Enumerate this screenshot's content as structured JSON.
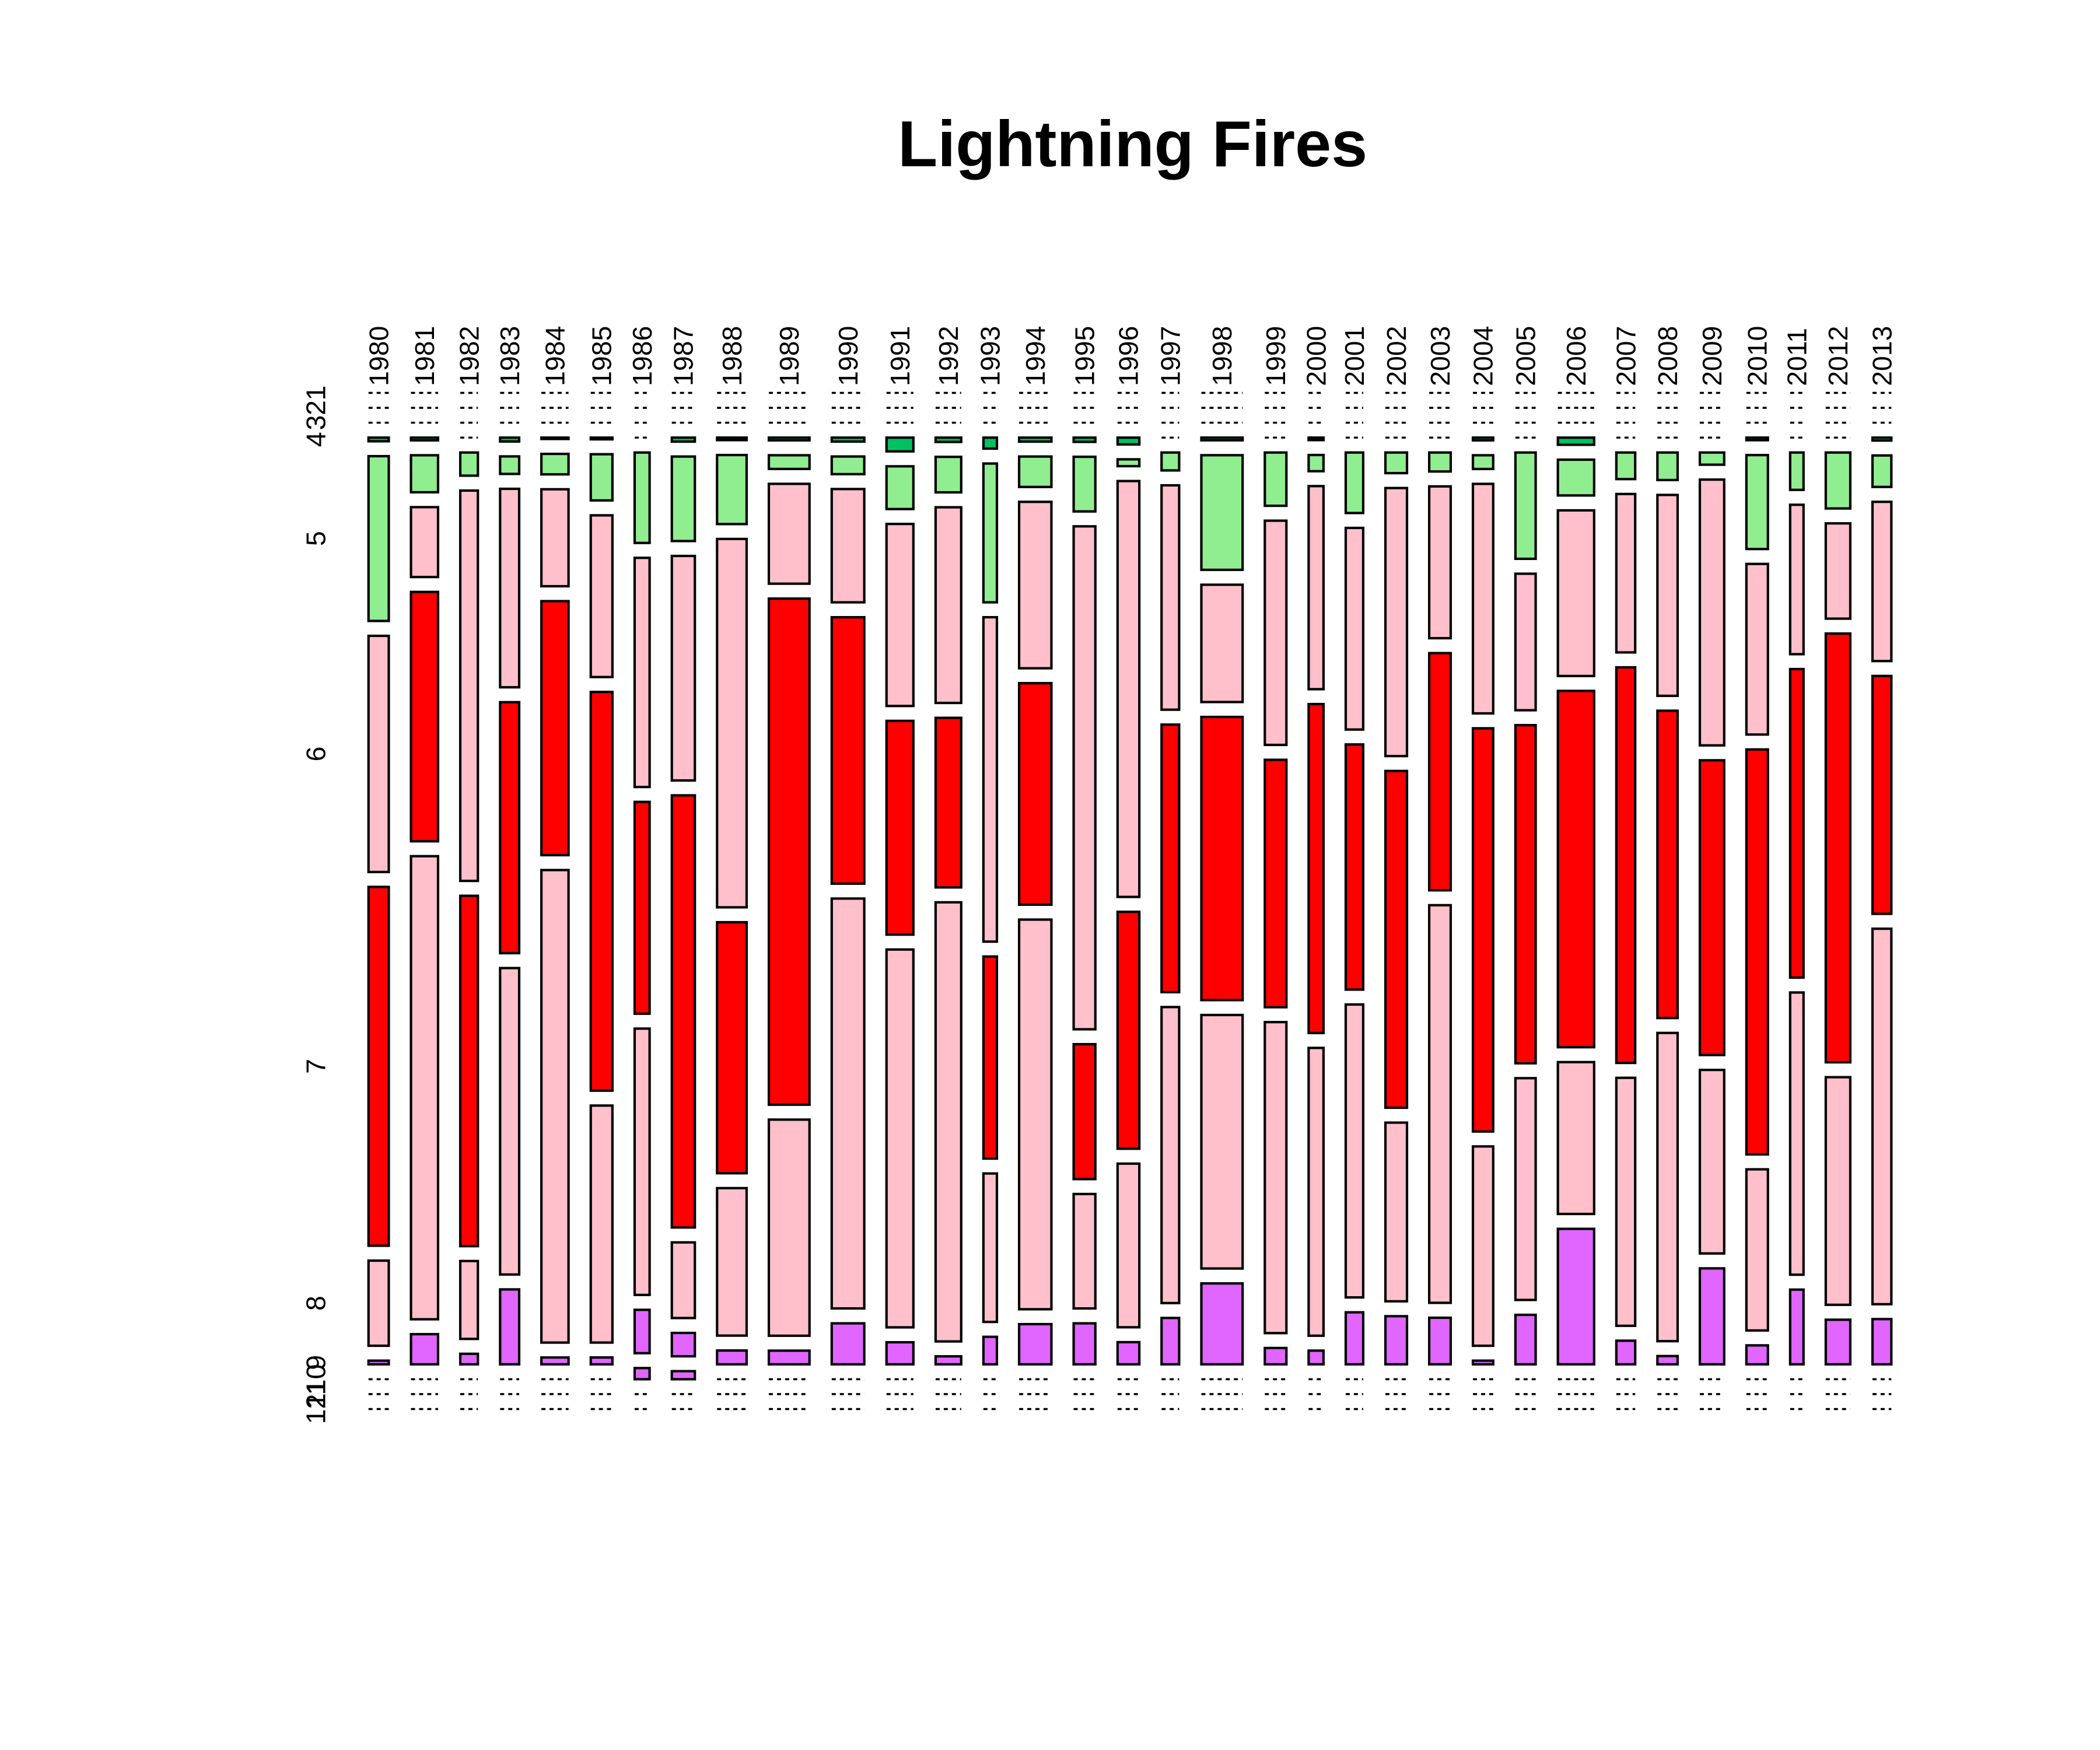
{
  "chart_data": {
    "type": "mosaic",
    "title": "Lightning Fires",
    "categories": [
      "1980",
      "1981",
      "1982",
      "1983",
      "1984",
      "1985",
      "1986",
      "1987",
      "1988",
      "1989",
      "1990",
      "1991",
      "1992",
      "1993",
      "1994",
      "1995",
      "1996",
      "1997",
      "1998",
      "1999",
      "2000",
      "2001",
      "2002",
      "2003",
      "2004",
      "2005",
      "2006",
      "2007",
      "2008",
      "2009",
      "2010",
      "2011",
      "2012",
      "2013"
    ],
    "series": [
      {
        "name": "1",
        "color": "#bebebe",
        "values": [
          0,
          0,
          0,
          0,
          0,
          0,
          0,
          0,
          0,
          0,
          0,
          0,
          0,
          0,
          0,
          0,
          0,
          0,
          0,
          0,
          0,
          0,
          0,
          0,
          0,
          0,
          0,
          0,
          0,
          0,
          0,
          0,
          0,
          0
        ]
      },
      {
        "name": "2",
        "color": "#bebebe",
        "values": [
          0,
          0,
          0,
          0,
          0,
          0,
          0,
          0,
          0,
          0,
          0,
          0,
          0,
          0,
          0,
          0,
          0,
          0,
          0,
          0,
          0,
          0,
          0,
          0,
          0,
          0,
          0,
          0,
          0,
          0,
          0,
          0,
          0,
          0
        ]
      },
      {
        "name": "3",
        "color": "#bebebe",
        "values": [
          0,
          0,
          0,
          0,
          0,
          0,
          0,
          0,
          0,
          0,
          0,
          0,
          0,
          0,
          0,
          0,
          0,
          0,
          0,
          0,
          0,
          0,
          0,
          0,
          0,
          0,
          0,
          0,
          0,
          0,
          0,
          0,
          0,
          0
        ]
      },
      {
        "name": "4",
        "color": "#00c060",
        "values": [
          4,
          4,
          0,
          4,
          2,
          2,
          0,
          5,
          4,
          6,
          7,
          20,
          6,
          8,
          7,
          5,
          8,
          0,
          6,
          0,
          2,
          0,
          0,
          0,
          3,
          0,
          14,
          0,
          0,
          0,
          3,
          0,
          0,
          3
        ]
      },
      {
        "name": "5",
        "color": "#90ee90",
        "values": [
          180,
          54,
          22,
          18,
          30,
          54,
          73,
          105,
          110,
          30,
          31,
          62,
          49,
          101,
          53,
          64,
          8,
          17,
          255,
          62,
          13,
          57,
          24,
          22,
          15,
          116,
          70,
          27,
          30,
          16,
          109,
          27,
          74,
          32
        ]
      },
      {
        "name": "6",
        "color": "#ffc0cb",
        "values": [
          258,
          102,
          371,
          204,
          142,
          189,
          185,
          279,
          587,
          219,
          199,
          264,
          270,
          236,
          290,
          589,
          488,
          213,
          261,
          261,
          163,
          190,
          312,
          176,
          251,
          149,
          324,
          161,
          219,
          349,
          198,
          108,
          126,
          162
        ]
      },
      {
        "name": "7",
        "color": "#ff0000",
        "values": [
          392,
          364,
          333,
          258,
          372,
          466,
          171,
          537,
          400,
          1110,
          468,
          310,
          234,
          147,
          386,
          158,
          278,
          254,
          630,
          288,
          264,
          231,
          392,
          275,
          441,
          369,
          697,
          402,
          335,
          387,
          470,
          223,
          567,
          242
        ]
      },
      {
        "name": "8",
        "color": "#ffc0cb",
        "values": [
          93,
          676,
          74,
          315,
          692,
          277,
          215,
          94,
          235,
          474,
          720,
          548,
          606,
          108,
          679,
          134,
          192,
          281,
          564,
          362,
          231,
          276,
          208,
          461,
          218,
          242,
          297,
          252,
          336,
          241,
          187,
          204,
          301,
          382
        ]
      },
      {
        "name": "9",
        "color": "#e066ff",
        "values": [
          4,
          44,
          10,
          77,
          10,
          8,
          35,
          29,
          22,
          30,
          72,
          32,
          11,
          20,
          70,
          48,
          26,
          44,
          180,
          19,
          11,
          49,
          56,
          54,
          4,
          54,
          265,
          24,
          9,
          126,
          22,
          54,
          59,
          46
        ]
      },
      {
        "name": "10",
        "color": "#e066ff",
        "values": [
          0,
          0,
          0,
          0,
          0,
          0,
          9,
          10,
          0,
          0,
          0,
          0,
          0,
          0,
          0,
          0,
          0,
          0,
          0,
          0,
          0,
          0,
          0,
          0,
          0,
          0,
          0,
          0,
          0,
          0,
          0,
          0,
          0,
          0
        ]
      },
      {
        "name": "11",
        "color": "#bebebe",
        "values": [
          0,
          0,
          0,
          0,
          0,
          0,
          0,
          0,
          0,
          0,
          0,
          0,
          0,
          0,
          0,
          0,
          0,
          0,
          0,
          0,
          0,
          0,
          0,
          0,
          0,
          0,
          0,
          0,
          0,
          0,
          0,
          0,
          0,
          0
        ]
      },
      {
        "name": "12",
        "color": "#bebebe",
        "values": [
          0,
          0,
          0,
          0,
          0,
          0,
          0,
          0,
          0,
          0,
          0,
          0,
          0,
          0,
          0,
          0,
          0,
          0,
          0,
          0,
          0,
          0,
          0,
          0,
          0,
          0,
          0,
          0,
          0,
          0,
          0,
          0,
          0,
          0
        ]
      }
    ]
  }
}
